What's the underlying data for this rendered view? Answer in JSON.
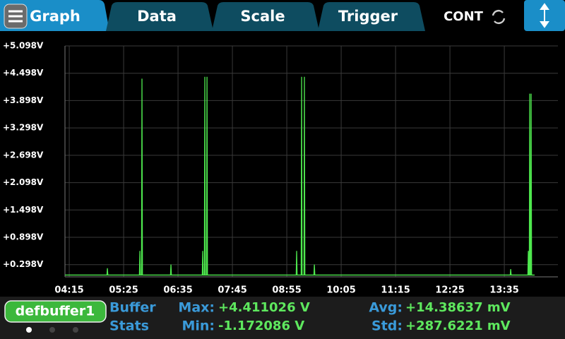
{
  "tabs": [
    "Graph",
    "Data",
    "Scale",
    "Trigger"
  ],
  "mode": "CONT",
  "chart_data": {
    "type": "line",
    "color": "#4ee84e",
    "x": [
      249.5,
      303.5,
      304.1,
      304.7,
      345.3,
      345.9,
      346.5,
      348.0,
      348.6,
      349.2,
      385.3,
      385.9,
      386.5,
      426.2,
      426.8,
      427.4,
      428.9,
      429.5,
      430.1,
      431.7,
      432.3,
      432.9,
      547.1,
      547.7,
      548.3,
      553.5,
      554.1,
      554.7,
      557.1,
      557.7,
      558.3,
      569.9,
      570.5,
      571.1,
      822.6,
      823.2,
      823.8,
      845.3,
      845.9,
      846.5,
      847.1,
      847.7,
      848.3,
      848.9,
      849.5,
      850.1,
      854
    ],
    "values": [
      0.07,
      0.07,
      0.22,
      0.07,
      0.07,
      0.6,
      0.07,
      0.07,
      4.38,
      0.07,
      0.07,
      0.3,
      0.07,
      0.07,
      0.6,
      0.07,
      0.07,
      4.42,
      0.07,
      0.07,
      4.42,
      0.07,
      0.07,
      0.6,
      0.07,
      0.07,
      4.42,
      0.07,
      0.07,
      4.42,
      0.07,
      0.07,
      0.3,
      0.07,
      0.07,
      0.2,
      0.07,
      0.07,
      0.6,
      0.07,
      0.07,
      4.05,
      0.07,
      0.07,
      4.05,
      0.07,
      0.07
    ],
    "xlim": [
      249.5,
      884
    ],
    "xticks": [
      {
        "value": 255,
        "label": "04:15"
      },
      {
        "value": 325,
        "label": "05:25"
      },
      {
        "value": 395,
        "label": "06:35"
      },
      {
        "value": 465,
        "label": "07:45"
      },
      {
        "value": 535,
        "label": "08:55"
      },
      {
        "value": 605,
        "label": "10:05"
      },
      {
        "value": 675,
        "label": "11:15"
      },
      {
        "value": 745,
        "label": "12:25"
      },
      {
        "value": 815,
        "label": "13:35"
      }
    ],
    "ylim": [
      0.03,
      5.098
    ],
    "yticks": [
      {
        "value": 0.298,
        "label": "+0.298V"
      },
      {
        "value": 0.898,
        "label": "+0.898V"
      },
      {
        "value": 1.498,
        "label": "+1.498V"
      },
      {
        "value": 2.098,
        "label": "+2.098V"
      },
      {
        "value": 2.698,
        "label": "+2.698V"
      },
      {
        "value": 3.298,
        "label": "+3.298V"
      },
      {
        "value": 3.898,
        "label": "+3.898V"
      },
      {
        "value": 4.498,
        "label": "+4.498V"
      },
      {
        "value": 5.098,
        "label": "+5.098V"
      }
    ],
    "grid": true
  },
  "buffer": {
    "name": "defbuffer1",
    "heading": [
      "Buffer",
      "Stats"
    ]
  },
  "stats": [
    {
      "label": "Max:",
      "value": "+4.411026 V"
    },
    {
      "label": "Min:",
      "value": "-1.172086 V"
    },
    {
      "label": "Avg:",
      "value": "+14.38637 mV"
    },
    {
      "label": "Std:",
      "value": "+287.6221 mV"
    }
  ]
}
